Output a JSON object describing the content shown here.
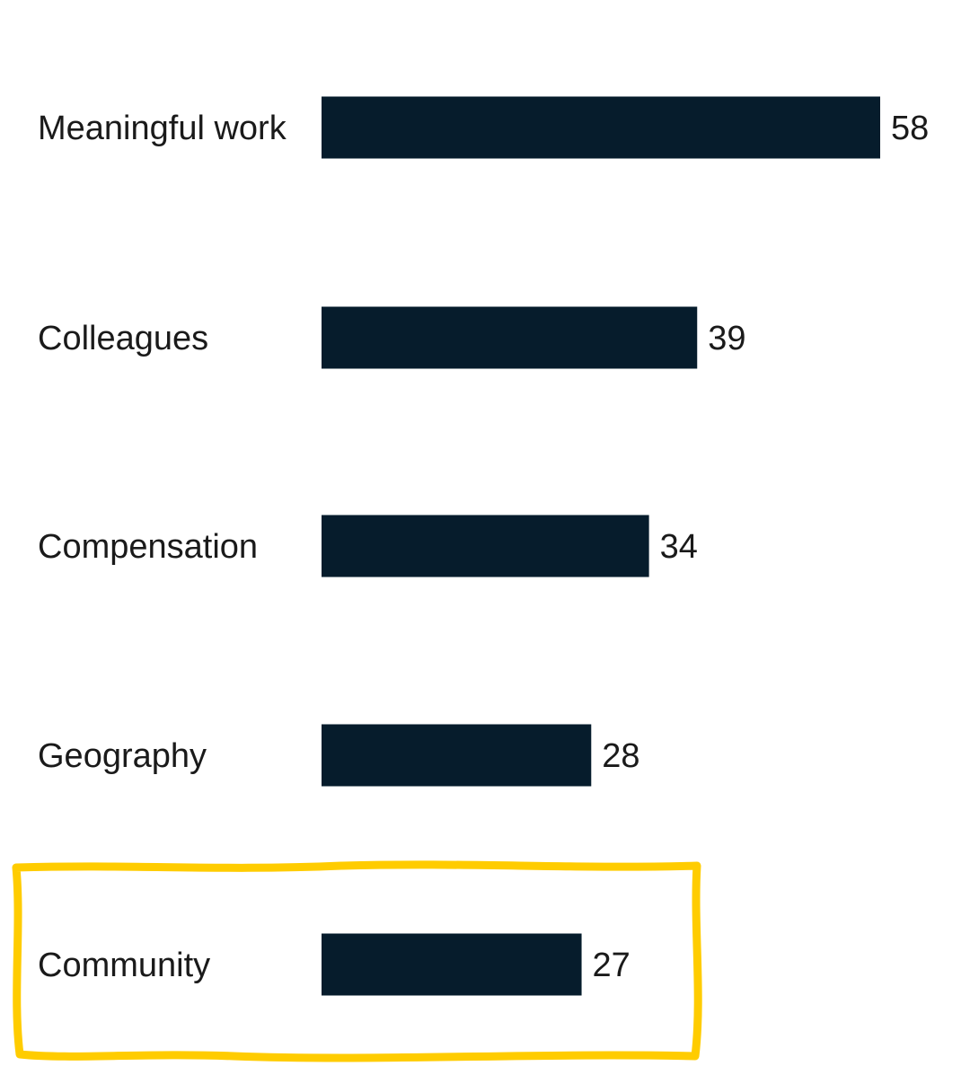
{
  "chart_data": {
    "type": "bar",
    "orientation": "horizontal",
    "categories": [
      "Meaningful work",
      "Colleagues",
      "Compensation",
      "Geography",
      "Community"
    ],
    "values": [
      58,
      39,
      34,
      28,
      27
    ],
    "value_labels": [
      "58",
      "39",
      "34",
      "28",
      "27"
    ],
    "title": "",
    "xlabel": "",
    "ylabel": "",
    "xlim": [
      0,
      58
    ],
    "grid": false,
    "legend": "none",
    "bar_color": "#061c2c",
    "highlight": {
      "category": "Community",
      "color": "#ffcc00",
      "style": "hand-drawn box"
    }
  }
}
